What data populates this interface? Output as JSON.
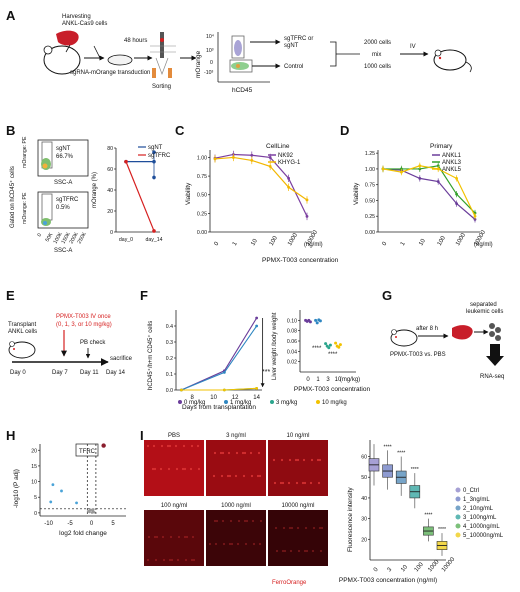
{
  "panels": [
    "A",
    "B",
    "C",
    "D",
    "E",
    "F",
    "G",
    "H",
    "I"
  ],
  "A": {
    "harvest": [
      "Harvesting",
      "ANKL-Cas9 cells"
    ],
    "transduction": "sgRNA-mOrange transduction",
    "hours": "48 hours",
    "sorting": "Sorting",
    "ylabel": "mOrange",
    "xlabel": "hCD45",
    "yticks": [
      "10⁴",
      "10³",
      "0",
      "-10³"
    ],
    "gate_top": [
      "sgTFRC or",
      "sgNT"
    ],
    "gate_bottom": "Control",
    "cells_top": "2000 cells",
    "mix": "mix",
    "cells_bottom": "1000 cells",
    "iv": "IV"
  },
  "B": {
    "ylabel": "Gated on hCD45⁺ cells",
    "flow_ylabel": "mOrange: PE",
    "flow_xlabel": "SSC-A",
    "top_label": "sgNT",
    "top_pct": "66.7%",
    "bottom_label": "sgTFRC",
    "bottom_pct": "0.5%",
    "xticks": [
      "0",
      "50K",
      "100K",
      "150K",
      "200K",
      "250K"
    ]
  },
  "C": {
    "legend_title": "CellLine",
    "ylabel": "Viability",
    "unit": "(ng/ml)"
  },
  "D": {
    "legend_title": "Primary",
    "ylabel": "Viability",
    "unit": "(ng/ml)"
  },
  "CD_xlabel": "PPMX-T003 concentration",
  "E": {
    "transplant": [
      "Transplant",
      "ANKL cells"
    ],
    "treat": [
      "PPMX-T003 IV once",
      "(0, 1, 3, or 10 mg/kg)"
    ],
    "pb": "PB check",
    "sacrifice": "sacrifice",
    "days": [
      "Day 0",
      "Day 7",
      "Day 11",
      "Day 14"
    ]
  },
  "F": {
    "stars_line": "***",
    "stars_liver": [
      "****",
      "****"
    ],
    "legend": [
      "0 mg/kg",
      "1 mg/kg",
      "3 mg/kg",
      "10 mg/kg"
    ]
  },
  "G": {
    "after": "after 8 h",
    "treat": "PPMX-T003 vs. PBS",
    "separated": [
      "separated",
      "leukemic cells"
    ],
    "rnaseq": "RNA-seq"
  },
  "H": {
    "gene": "TFRC"
  },
  "I": {
    "images": [
      "PBS",
      "3 ng/ml",
      "10 ng/ml",
      "100 ng/ml",
      "1000 ng/ml",
      "10000 ng/ml"
    ],
    "stain": "FerroOrange",
    "stars": [
      "****",
      "****",
      "****",
      "****",
      "****"
    ]
  },
  "colors": {
    "red": "#d62020",
    "nk92": "#7b3fa0",
    "khyg": "#f2b600",
    "ankl1": "#6a3d9a",
    "ankl3": "#33a02c",
    "ankl5": "#f2c200",
    "sgnt": "#1f4e9a",
    "sgtfrc": "#d62020"
  },
  "chart_data": [
    {
      "panel": "B",
      "type": "line",
      "categories": [
        "day_0",
        "day_14"
      ],
      "ylabel": "mOrange (%)",
      "ylim": [
        0,
        80
      ],
      "yticks": [
        0,
        20,
        40,
        60,
        80
      ],
      "legend": "top-right",
      "series": [
        {
          "name": "sgNT",
          "values": [
            67,
            67
          ]
        },
        {
          "name": "sgTFRC",
          "values": [
            67,
            1
          ]
        }
      ]
    },
    {
      "panel": "C",
      "type": "line",
      "categories": [
        "0",
        "1",
        "10",
        "100",
        "1000",
        "10000"
      ],
      "ylim": [
        0,
        1.1
      ],
      "yticks": [
        0,
        0.25,
        0.5,
        0.75,
        1.0
      ],
      "series": [
        {
          "name": "NK92",
          "values": [
            0.99,
            1.04,
            1.03,
            1.0,
            0.72,
            0.21
          ]
        },
        {
          "name": "KHYG-1",
          "values": [
            0.98,
            1.0,
            0.96,
            0.88,
            0.6,
            0.43
          ]
        }
      ]
    },
    {
      "panel": "D",
      "type": "line",
      "categories": [
        "0",
        "1",
        "10",
        "100",
        "1000",
        "10000"
      ],
      "ylim": [
        0,
        1.3
      ],
      "yticks": [
        0,
        0.25,
        0.5,
        0.75,
        1.0,
        1.25
      ],
      "series": [
        {
          "name": "ANKL1",
          "values": [
            1.0,
            0.98,
            0.85,
            0.8,
            0.45,
            0.2
          ]
        },
        {
          "name": "ANKL3",
          "values": [
            1.0,
            1.0,
            1.0,
            1.05,
            0.6,
            0.3
          ]
        },
        {
          "name": "ANKL5",
          "values": [
            1.0,
            0.95,
            1.05,
            1.0,
            0.85,
            0.25
          ]
        }
      ]
    },
    {
      "panel": "F-left",
      "type": "line",
      "xlabel": "Days from transplantation",
      "ylabel": "hCD45⁺/h+m CD45⁺ cells",
      "x": [
        7,
        11,
        14
      ],
      "xticks": [
        8,
        10,
        12,
        14
      ],
      "ylim": [
        0,
        0.5
      ],
      "yticks": [
        0.0,
        0.1,
        0.2,
        0.3,
        0.4
      ],
      "series": [
        {
          "name": "0 mg/kg",
          "values": [
            0.0,
            0.12,
            0.45
          ]
        },
        {
          "name": "1 mg/kg",
          "values": [
            0.0,
            0.11,
            0.4
          ]
        },
        {
          "name": "3 mg/kg",
          "values": [
            0.0,
            0.0,
            0.01
          ]
        },
        {
          "name": "10 mg/kg",
          "values": [
            0.0,
            0.0,
            0.01
          ]
        }
      ]
    },
    {
      "panel": "F-right",
      "type": "scatter",
      "xlabel": "PPMX-T003 concentration",
      "ylabel": "Liver weight /body weight",
      "categories": [
        "0",
        "1",
        "3",
        "10",
        "(mg/kg)"
      ],
      "ylim": [
        0.0,
        0.12
      ],
      "yticks": [
        0.02,
        0.04,
        0.06,
        0.08,
        0.1
      ],
      "series": [
        {
          "name": "0 mg/kg",
          "values": [
            0.1,
            0.098,
            0.1,
            0.097
          ]
        },
        {
          "name": "1 mg/kg",
          "values": [
            0.1,
            0.095,
            0.101,
            0.099
          ]
        },
        {
          "name": "3 mg/kg",
          "values": [
            0.055,
            0.05,
            0.047,
            0.052
          ]
        },
        {
          "name": "10 mg/kg",
          "values": [
            0.056,
            0.05,
            0.048,
            0.053
          ]
        }
      ]
    },
    {
      "panel": "H",
      "type": "scatter",
      "xlabel": "log2 fold change",
      "ylabel": "-log10 (P adj)",
      "xticks": [
        -10,
        -5,
        0,
        5
      ],
      "yticks": [
        0,
        5,
        10,
        15,
        20
      ],
      "xlim": [
        -12,
        8
      ],
      "ylim": [
        -1,
        22
      ],
      "series": [
        {
          "name": "TFRC",
          "x": [
            2.8
          ],
          "y": [
            21.5
          ]
        }
      ]
    },
    {
      "panel": "I",
      "type": "box",
      "ylabel": "Fluorescence intensity",
      "xlabel": "PPMX-T003 concentration (ng/ml)",
      "categories": [
        "0",
        "3",
        "10",
        "100",
        "1000",
        "10000"
      ],
      "ylim": [
        10,
        68
      ],
      "yticks": [
        20,
        30,
        40,
        50,
        60
      ],
      "legend": "right",
      "series": [
        {
          "name": "0_Ctrl",
          "median": 56,
          "q1": 53,
          "q3": 59,
          "min": 46,
          "max": 66
        },
        {
          "name": "1_3ng/mL",
          "median": 53,
          "q1": 50,
          "q3": 56,
          "min": 44,
          "max": 63
        },
        {
          "name": "2_10ng/mL",
          "median": 50,
          "q1": 47,
          "q3": 53,
          "min": 41,
          "max": 60
        },
        {
          "name": "3_100ng/mL",
          "median": 43,
          "q1": 40,
          "q3": 46,
          "min": 35,
          "max": 52
        },
        {
          "name": "4_1000ng/mL",
          "median": 24,
          "q1": 22,
          "q3": 26,
          "min": 19,
          "max": 30
        },
        {
          "name": "5_10000ng/mL",
          "median": 17,
          "q1": 15,
          "q3": 19,
          "min": 12,
          "max": 23
        }
      ]
    }
  ]
}
